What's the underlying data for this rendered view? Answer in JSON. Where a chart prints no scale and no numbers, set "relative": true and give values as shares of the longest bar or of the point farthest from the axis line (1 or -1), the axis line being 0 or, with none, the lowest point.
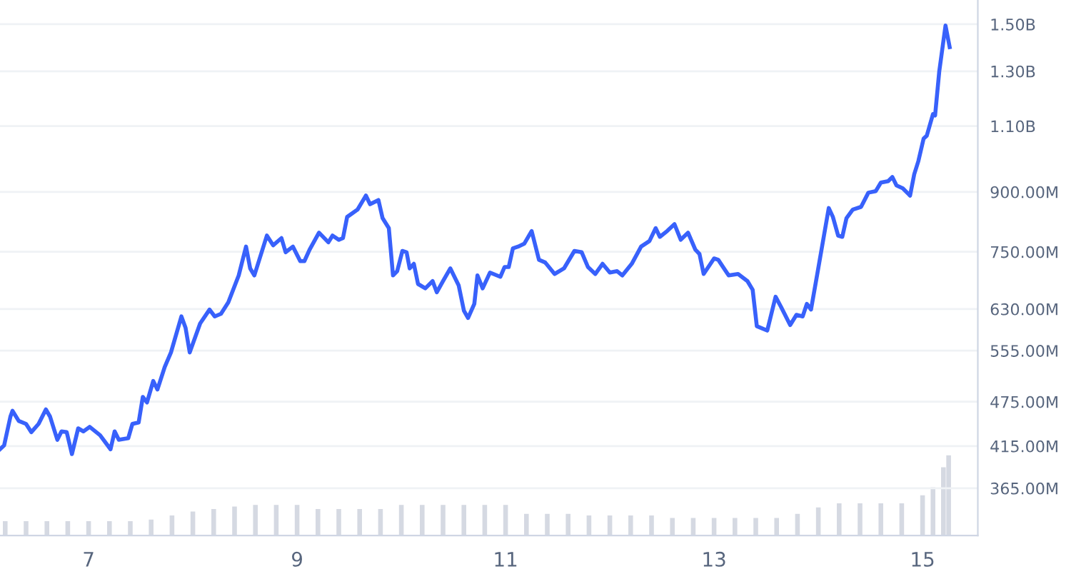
{
  "chart_data": [
    {
      "type": "line",
      "xlim": [
        6.15,
        15.53
      ],
      "xticks": [
        7,
        9,
        11,
        13,
        15
      ],
      "log": "y",
      "ylim": [
        316000000,
        1615000000
      ],
      "yticks": [
        {
          "value": 365000000,
          "label": "365.00M"
        },
        {
          "value": 415000000,
          "label": "415.00M"
        },
        {
          "value": 475000000,
          "label": "475.00M"
        },
        {
          "value": 555000000,
          "label": "555.00M"
        },
        {
          "value": 630000000,
          "label": "630.00M"
        },
        {
          "value": 750000000,
          "label": "750.00M"
        },
        {
          "value": 900000000,
          "label": "900.00M"
        },
        {
          "value": 1100000000,
          "label": "1.10B"
        },
        {
          "value": 1300000000,
          "label": "1.30B"
        },
        {
          "value": 1500000000,
          "label": "1.50B"
        }
      ],
      "grid": "y",
      "series": [
        {
          "color": "#3861fb",
          "x": [
            6.15,
            6.19,
            6.25,
            6.27,
            6.33,
            6.4,
            6.45,
            6.52,
            6.59,
            6.63,
            6.7,
            6.74,
            6.79,
            6.84,
            6.9,
            6.95,
            7.01,
            7.11,
            7.21,
            7.25,
            7.29,
            7.38,
            7.42,
            7.48,
            7.52,
            7.56,
            7.62,
            7.66,
            7.73,
            7.79,
            7.89,
            7.93,
            7.97,
            8.07,
            8.16,
            8.21,
            8.27,
            8.34,
            8.44,
            8.51,
            8.55,
            8.59,
            8.71,
            8.77,
            8.85,
            8.89,
            8.96,
            9.03,
            9.07,
            9.12,
            9.21,
            9.3,
            9.34,
            9.4,
            9.44,
            9.48,
            9.58,
            9.66,
            9.7,
            9.78,
            9.82,
            9.88,
            9.92,
            9.96,
            10.01,
            10.05,
            10.08,
            10.12,
            10.16,
            10.23,
            10.3,
            10.34,
            10.4,
            10.47,
            10.55,
            10.6,
            10.64,
            10.7,
            10.73,
            10.78,
            10.85,
            10.95,
            10.99,
            11.03,
            11.07,
            11.12,
            11.18,
            11.25,
            11.32,
            11.38,
            11.47,
            11.56,
            11.66,
            11.73,
            11.79,
            11.86,
            11.93,
            12.0,
            12.07,
            12.12,
            12.21,
            12.3,
            12.38,
            12.44,
            12.48,
            12.55,
            12.62,
            12.68,
            12.75,
            12.82,
            12.86,
            12.9,
            13.0,
            13.04,
            13.14,
            13.23,
            13.32,
            13.37,
            13.41,
            13.51,
            13.59,
            13.64,
            13.73,
            13.79,
            13.85,
            13.89,
            13.93,
            13.99,
            14.1,
            14.14,
            14.19,
            14.23,
            14.27,
            14.33,
            14.41,
            14.48,
            14.55,
            14.6,
            14.67,
            14.71,
            14.75,
            14.81,
            14.88,
            14.92,
            14.96,
            15.01,
            15.04,
            15.1,
            15.12,
            15.16,
            15.22,
            15.26
          ],
          "values": [
            411000000,
            416000000,
            454000000,
            462000000,
            448000000,
            444000000,
            433000000,
            444000000,
            464000000,
            454000000,
            423000000,
            434000000,
            433000000,
            405000000,
            438000000,
            434000000,
            440000000,
            429000000,
            411000000,
            434000000,
            423000000,
            425000000,
            444000000,
            446000000,
            482000000,
            474000000,
            506000000,
            493000000,
            528000000,
            552000000,
            616000000,
            595000000,
            552000000,
            603000000,
            629000000,
            616000000,
            621000000,
            643000000,
            698000000,
            762000000,
            713000000,
            698000000,
            788000000,
            765000000,
            782000000,
            749000000,
            762000000,
            729000000,
            729000000,
            755000000,
            795000000,
            772000000,
            788000000,
            778000000,
            782000000,
            834000000,
            853000000,
            890000000,
            867000000,
            878000000,
            831000000,
            806000000,
            698000000,
            707000000,
            752000000,
            749000000,
            713000000,
            723000000,
            680000000,
            671000000,
            686000000,
            663000000,
            686000000,
            713000000,
            677000000,
            627000000,
            613000000,
            640000000,
            698000000,
            671000000,
            704000000,
            695000000,
            716000000,
            716000000,
            758000000,
            762000000,
            769000000,
            799000000,
            732000000,
            726000000,
            701000000,
            713000000,
            752000000,
            749000000,
            716000000,
            701000000,
            723000000,
            704000000,
            707000000,
            698000000,
            723000000,
            762000000,
            775000000,
            806000000,
            785000000,
            799000000,
            816000000,
            778000000,
            795000000,
            755000000,
            745000000,
            701000000,
            735000000,
            732000000,
            698000000,
            701000000,
            686000000,
            668000000,
            598000000,
            590000000,
            654000000,
            635000000,
            600000000,
            619000000,
            616000000,
            640000000,
            629000000,
            701000000,
            857000000,
            834000000,
            788000000,
            785000000,
            831000000,
            853000000,
            860000000,
            898000000,
            902000000,
            926000000,
            930000000,
            942000000,
            918000000,
            910000000,
            890000000,
            950000000,
            989000000,
            1059000000,
            1068000000,
            1141000000,
            1136000000,
            1299000000,
            1494000000,
            1399000000
          ]
        }
      ]
    },
    {
      "type": "bar",
      "relative": true,
      "xlim": [
        6.15,
        15.53
      ],
      "color": "#d5d9e2",
      "x": [
        6.2,
        6.4,
        6.6,
        6.8,
        7.0,
        7.2,
        7.4,
        7.6,
        7.8,
        8.0,
        8.2,
        8.4,
        8.6,
        8.8,
        9.0,
        9.2,
        9.4,
        9.6,
        9.8,
        10.0,
        10.2,
        10.4,
        10.6,
        10.8,
        11.0,
        11.2,
        11.4,
        11.6,
        11.8,
        12.0,
        12.2,
        12.4,
        12.6,
        12.8,
        13.0,
        13.2,
        13.4,
        13.6,
        13.8,
        14.0,
        14.2,
        14.4,
        14.6,
        14.8,
        15.0,
        15.1,
        15.2,
        15.25
      ],
      "values": [
        0.18,
        0.18,
        0.18,
        0.18,
        0.18,
        0.18,
        0.18,
        0.2,
        0.25,
        0.3,
        0.33,
        0.36,
        0.38,
        0.38,
        0.38,
        0.33,
        0.33,
        0.33,
        0.33,
        0.38,
        0.38,
        0.38,
        0.38,
        0.38,
        0.38,
        0.27,
        0.27,
        0.27,
        0.25,
        0.25,
        0.25,
        0.25,
        0.22,
        0.22,
        0.22,
        0.22,
        0.22,
        0.22,
        0.27,
        0.35,
        0.4,
        0.4,
        0.4,
        0.4,
        0.5,
        0.6,
        0.85,
        1
      ]
    }
  ]
}
